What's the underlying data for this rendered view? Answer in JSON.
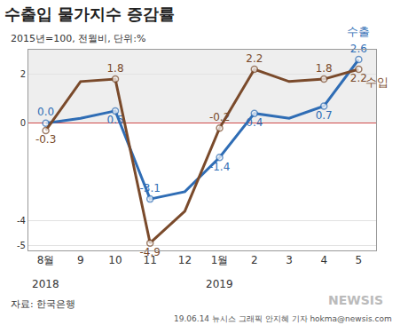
{
  "chart_data": {
    "type": "line",
    "title": "수출입 물가지수 증감률",
    "subtitle": "2015년=100, 전월비, 단위:%",
    "categories": [
      "8월",
      "9",
      "10",
      "11",
      "12",
      "1월",
      "2",
      "3",
      "4",
      "5"
    ],
    "series": [
      {
        "name": "수출",
        "color": "#2f6db5",
        "values": [
          0.0,
          0.2,
          0.5,
          -3.1,
          -2.8,
          -1.4,
          0.4,
          0.2,
          0.7,
          2.6
        ],
        "value_labels": [
          "0.0",
          null,
          "0.5",
          "-3.1",
          null,
          "-1.4",
          "0.4",
          null,
          "0.7",
          "2.6"
        ]
      },
      {
        "name": "수입",
        "color": "#7a4a2b",
        "values": [
          -0.3,
          1.7,
          1.8,
          -4.9,
          -3.6,
          -0.2,
          2.2,
          1.7,
          1.8,
          2.2
        ],
        "value_labels": [
          "-0.3",
          null,
          "1.8",
          "-4.9",
          null,
          "-0.2",
          "2.2",
          null,
          "1.8",
          "2.2"
        ]
      }
    ],
    "ylim": [
      -5.2,
      3
    ],
    "yticks": [
      2,
      0,
      -4,
      -5
    ],
    "grid": true,
    "data_labels": true,
    "marker": "circle",
    "annotations": [
      {
        "text": "2018",
        "x": "8월"
      },
      {
        "text": "2019",
        "x": "1월"
      }
    ],
    "source": "자료: 한국은행",
    "credit": "19.06.14 뉴시스 그래픽 안지혜 기자 hokma@newsis.com",
    "watermark": "NEWSIS"
  }
}
